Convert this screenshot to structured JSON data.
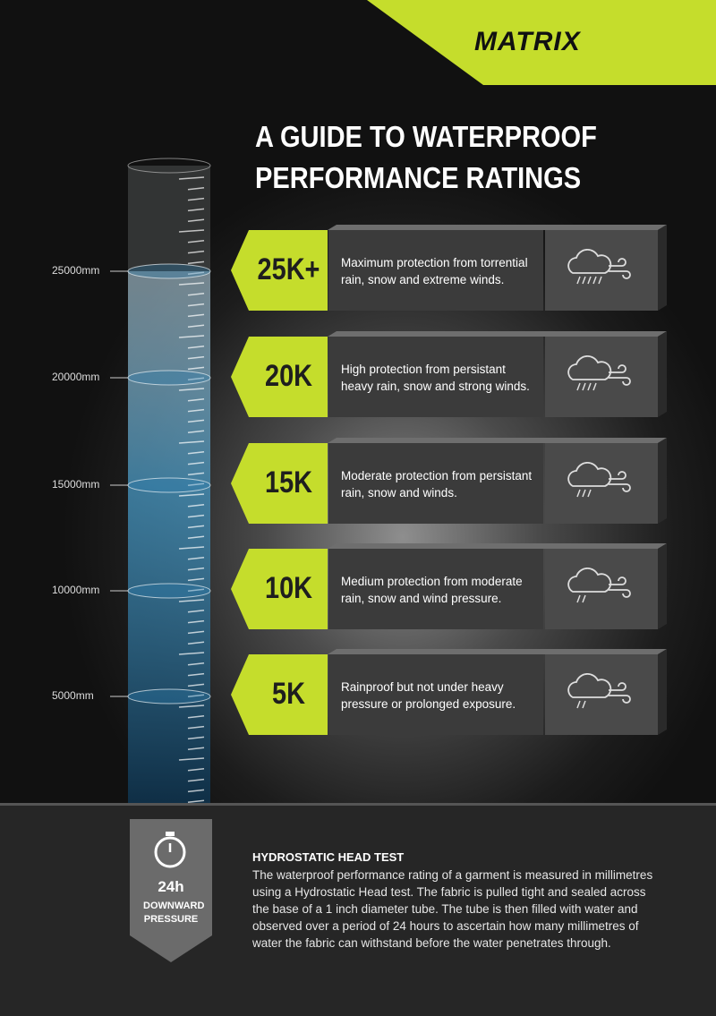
{
  "brand": "MATRIX",
  "title": [
    "A GUIDE TO WATERPROOF",
    "PERFORMANCE RATINGS"
  ],
  "scale_labels": [
    "25000mm",
    "20000mm",
    "15000mm",
    "10000mm",
    "5000mm"
  ],
  "ratings": [
    {
      "badge": "25K+",
      "description": "Maximum protection from torrential rain, snow and extreme winds."
    },
    {
      "badge": "20K",
      "description": "High protection from persistant heavy rain, snow and strong winds."
    },
    {
      "badge": "15K",
      "description": "Moderate protection from persistant rain, snow and winds."
    },
    {
      "badge": "10K",
      "description": "Medium protection from moderate rain, snow and wind pressure."
    },
    {
      "badge": "5K",
      "description": "Rainproof but not under heavy pressure or prolonged exposure."
    }
  ],
  "footer": {
    "duration": "24h",
    "pressure_label": "DOWNWARD PRESSURE",
    "heading": "HYDROSTATIC HEAD TEST",
    "body": "The waterproof performance rating of a garment is measured in millimetres using a Hydrostatic Head test. The fabric is pulled tight and sealed across the base of a 1 inch diameter tube. The tube is then filled with water and observed over a period of 24 hours to ascertain how many millimetres of water the fabric can withstand before the water penetrates through."
  }
}
